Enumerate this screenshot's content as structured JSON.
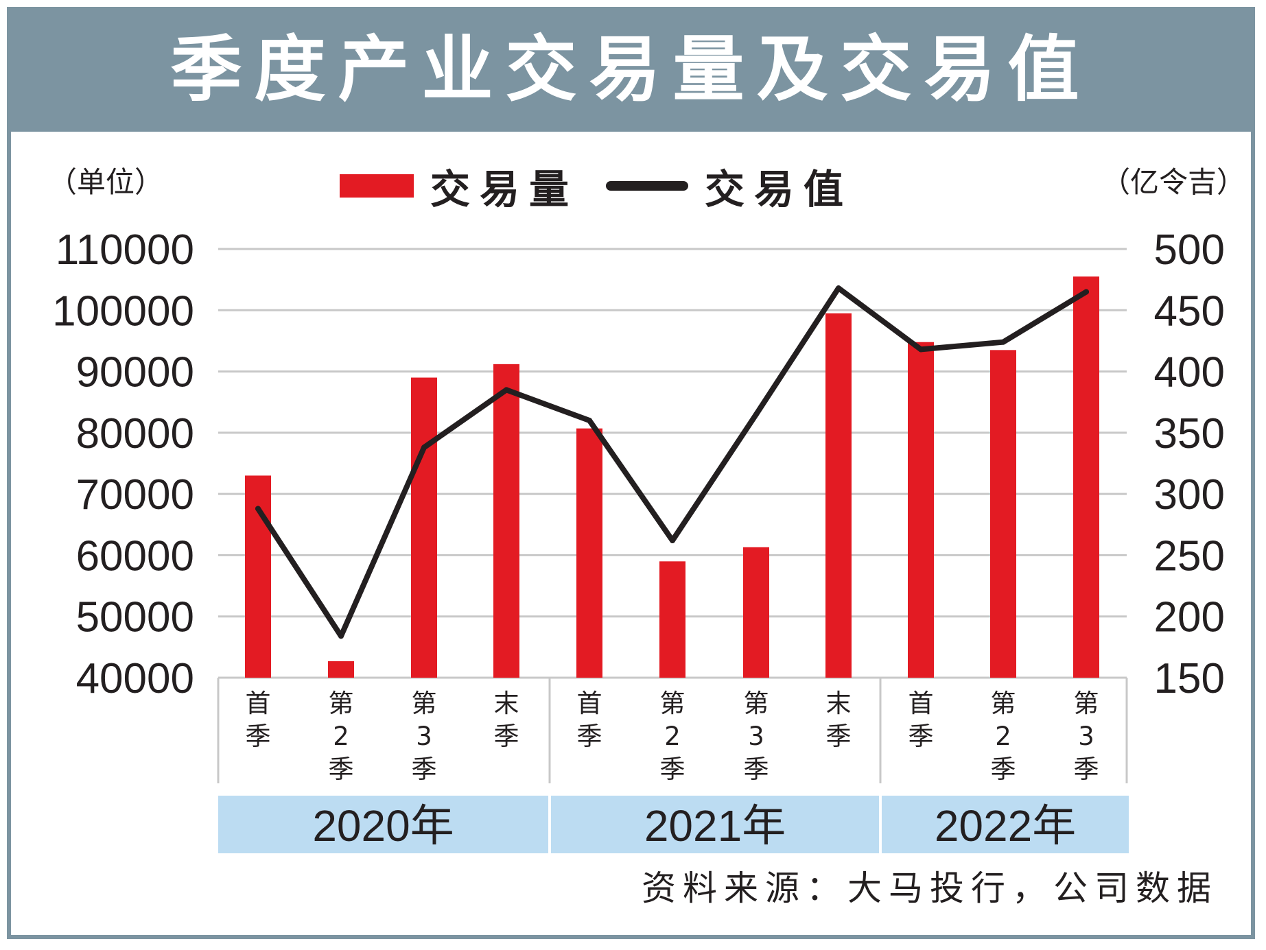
{
  "title": "季度产业交易量及交易值",
  "unit_left": "（单位）",
  "unit_right": "（亿令吉）",
  "legend": {
    "bar_label": "交易量",
    "line_label": "交易值"
  },
  "source": "资料来源：大马投行，公司数据",
  "colors": {
    "bar": "#e31b23",
    "line": "#231f20",
    "header": "#7c94a1",
    "year_band": "#bcdcf2",
    "grid": "#c8c8c8"
  },
  "chart_data": {
    "type": "bar",
    "categories": [
      "首季",
      "第2季",
      "第3季",
      "末季",
      "首季",
      "第2季",
      "第3季",
      "末季",
      "首季",
      "第2季",
      "第3季"
    ],
    "years": [
      {
        "label": "2020年",
        "count": 4
      },
      {
        "label": "2021年",
        "count": 4
      },
      {
        "label": "2022年",
        "count": 3
      }
    ],
    "series": [
      {
        "name": "交易量",
        "type": "bar",
        "axis": "left",
        "values": [
          73000,
          42700,
          89000,
          91200,
          80700,
          59000,
          61300,
          99500,
          94800,
          93500,
          105500
        ]
      },
      {
        "name": "交易值",
        "type": "line",
        "axis": "right",
        "values": [
          288,
          184,
          338,
          385,
          360,
          262,
          365,
          468,
          418,
          424,
          465
        ]
      }
    ],
    "y_left": {
      "ticks": [
        "110000",
        "100000",
        "90000",
        "80000",
        "70000",
        "60000",
        "50000",
        "40000"
      ],
      "range": [
        40000,
        110000
      ]
    },
    "y_right": {
      "ticks": [
        "500",
        "450",
        "400",
        "350",
        "300",
        "250",
        "200",
        "150"
      ],
      "range": [
        150,
        500
      ]
    },
    "grid": true,
    "legend_position": "top-center"
  }
}
